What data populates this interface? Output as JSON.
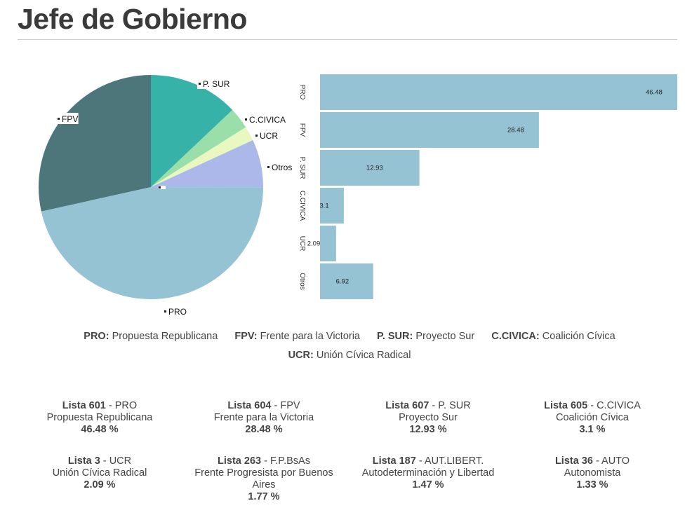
{
  "page": {
    "title": "Jefe de Gobierno"
  },
  "chart_data": [
    {
      "type": "pie",
      "categories": [
        "PRO",
        "FPV",
        "P. SUR",
        "C.CIVICA",
        "UCR",
        "Otros"
      ],
      "values": [
        46.48,
        28.48,
        12.93,
        3.1,
        2.09,
        6.92
      ],
      "colors": [
        "#96c3d4",
        "#4d767b",
        "#37b2a9",
        "#9adfaa",
        "#e8f8c0",
        "#adb8ea"
      ],
      "labels": [
        "PRO",
        "FPV",
        "P. SUR",
        "C.CIVICA",
        "UCR",
        "Otros"
      ]
    },
    {
      "type": "bar",
      "orientation": "horizontal",
      "categories": [
        "PRO",
        "FPV",
        "P. SUR",
        "C.CIVICA",
        "UCR",
        "Otros"
      ],
      "values": [
        46.48,
        28.48,
        12.93,
        3.1,
        2.09,
        6.92
      ],
      "data_labels": [
        "46.48",
        "28.48",
        "12.93",
        "3.1",
        "2.09",
        "6.92"
      ],
      "xlim": [
        0,
        46.48
      ],
      "bar_color": "#96c3d4",
      "grid": false
    }
  ],
  "legend": [
    {
      "abbr": "PRO:",
      "name": "Propuesta Republicana"
    },
    {
      "abbr": "FPV:",
      "name": "Frente para la Victoria"
    },
    {
      "abbr": "P. SUR:",
      "name": "Proyecto Sur"
    },
    {
      "abbr": "C.CIVICA:",
      "name": "Coalición Cívica"
    },
    {
      "abbr": "UCR:",
      "name": "Unión Cívica Radical"
    }
  ],
  "lists": [
    {
      "num": "Lista 601",
      "abbr": "PRO",
      "desc": "Propuesta Republicana",
      "pct": "46.48 %"
    },
    {
      "num": "Lista 604",
      "abbr": "FPV",
      "desc": "Frente para la Victoria",
      "pct": "28.48 %"
    },
    {
      "num": "Lista 607",
      "abbr": "P. SUR",
      "desc": "Proyecto Sur",
      "pct": "12.93 %"
    },
    {
      "num": "Lista 605",
      "abbr": "C.CIVICA",
      "desc": "Coalición Cívica",
      "pct": "3.1 %"
    },
    {
      "num": "Lista 3",
      "abbr": "UCR",
      "desc": "Unión Cívica Radical",
      "pct": "2.09 %"
    },
    {
      "num": "Lista 263",
      "abbr": "F.P.BsAs",
      "desc": "Frente Progresista por Buenos Aires",
      "pct": "1.77 %"
    },
    {
      "num": "Lista 187",
      "abbr": "AUT.LIBERT.",
      "desc": "Autodeterminación y Libertad",
      "pct": "1.47 %"
    },
    {
      "num": "Lista 36",
      "abbr": "AUTO",
      "desc": "Autonomista",
      "pct": "1.33 %"
    }
  ]
}
